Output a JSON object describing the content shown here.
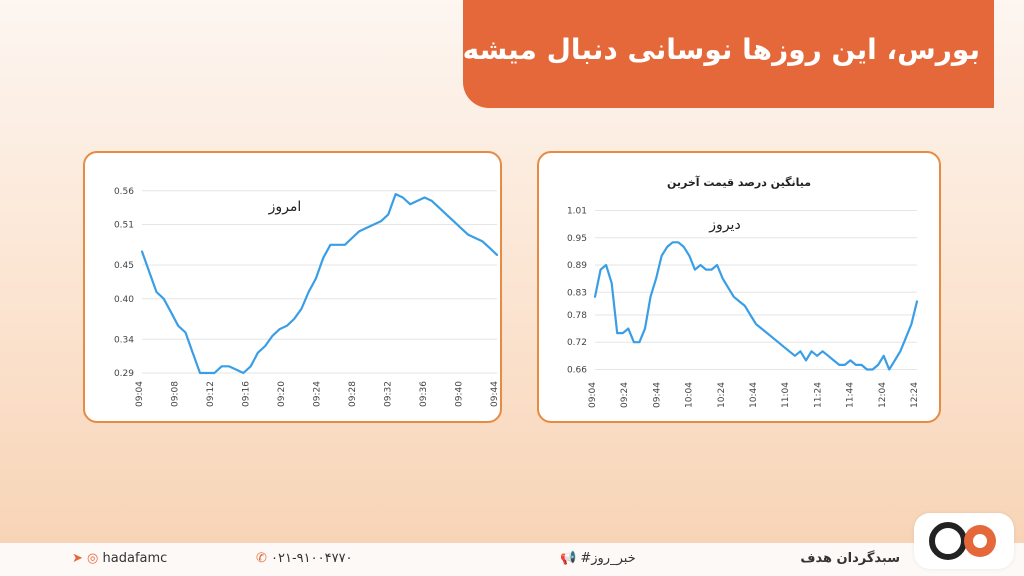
{
  "header": {
    "title": "بورس، این روزها نوسانی دنبال میشه"
  },
  "chart_data": [
    {
      "type": "line",
      "title": "",
      "annotation": "امروز",
      "ylim": [
        0.29,
        0.57
      ],
      "yticks": [
        "0.29",
        "0.34",
        "0.40",
        "0.45",
        "0.51",
        "0.56"
      ],
      "yvals": [
        0.29,
        0.34,
        0.4,
        0.45,
        0.51,
        0.56
      ],
      "xticks": [
        "09:04",
        "09:08",
        "09:12",
        "09:16",
        "09:20",
        "09:24",
        "09:28",
        "09:32",
        "09:36",
        "09:40",
        "09:44"
      ],
      "series": [
        {
          "values": [
            0.47,
            0.44,
            0.41,
            0.4,
            0.38,
            0.36,
            0.35,
            0.32,
            0.29,
            0.29,
            0.29,
            0.3,
            0.3,
            0.295,
            0.29,
            0.3,
            0.32,
            0.33,
            0.345,
            0.355,
            0.36,
            0.37,
            0.385,
            0.41,
            0.43,
            0.46,
            0.48,
            0.48,
            0.48,
            0.49,
            0.5,
            0.505,
            0.51,
            0.515,
            0.525,
            0.555,
            0.55,
            0.54,
            0.545,
            0.55,
            0.545,
            0.535,
            0.525,
            0.515,
            0.505,
            0.495,
            0.49,
            0.485,
            0.475,
            0.465
          ]
        }
      ]
    },
    {
      "type": "line",
      "title": "میانگین درصد قیمت آخرین",
      "annotation": "دیروز",
      "ylim": [
        0.65,
        1.02
      ],
      "yticks": [
        "0.66",
        "0.72",
        "0.78",
        "0.83",
        "0.89",
        "0.95",
        "1.01"
      ],
      "yvals": [
        0.66,
        0.72,
        0.78,
        0.83,
        0.89,
        0.95,
        1.01
      ],
      "xticks": [
        "09:04",
        "09:24",
        "09:44",
        "10:04",
        "10:24",
        "10:44",
        "11:04",
        "11:24",
        "11:44",
        "12:04",
        "12:24"
      ],
      "series": [
        {
          "values": [
            0.82,
            0.88,
            0.89,
            0.85,
            0.74,
            0.74,
            0.75,
            0.72,
            0.72,
            0.75,
            0.82,
            0.86,
            0.91,
            0.93,
            0.94,
            0.94,
            0.93,
            0.91,
            0.88,
            0.89,
            0.88,
            0.88,
            0.89,
            0.86,
            0.84,
            0.82,
            0.81,
            0.8,
            0.78,
            0.76,
            0.75,
            0.74,
            0.73,
            0.72,
            0.71,
            0.7,
            0.69,
            0.7,
            0.68,
            0.7,
            0.69,
            0.7,
            0.69,
            0.68,
            0.67,
            0.67,
            0.68,
            0.67,
            0.67,
            0.66,
            0.66,
            0.67,
            0.69,
            0.66,
            0.68,
            0.7,
            0.73,
            0.76,
            0.81
          ]
        }
      ]
    }
  ],
  "footer": {
    "brand": "سبدگردان هدف",
    "hashtag": "#خبر_روز",
    "phone": "۰۲۱-۹۱۰۰۴۷۷۰",
    "social": "hadafamc"
  }
}
